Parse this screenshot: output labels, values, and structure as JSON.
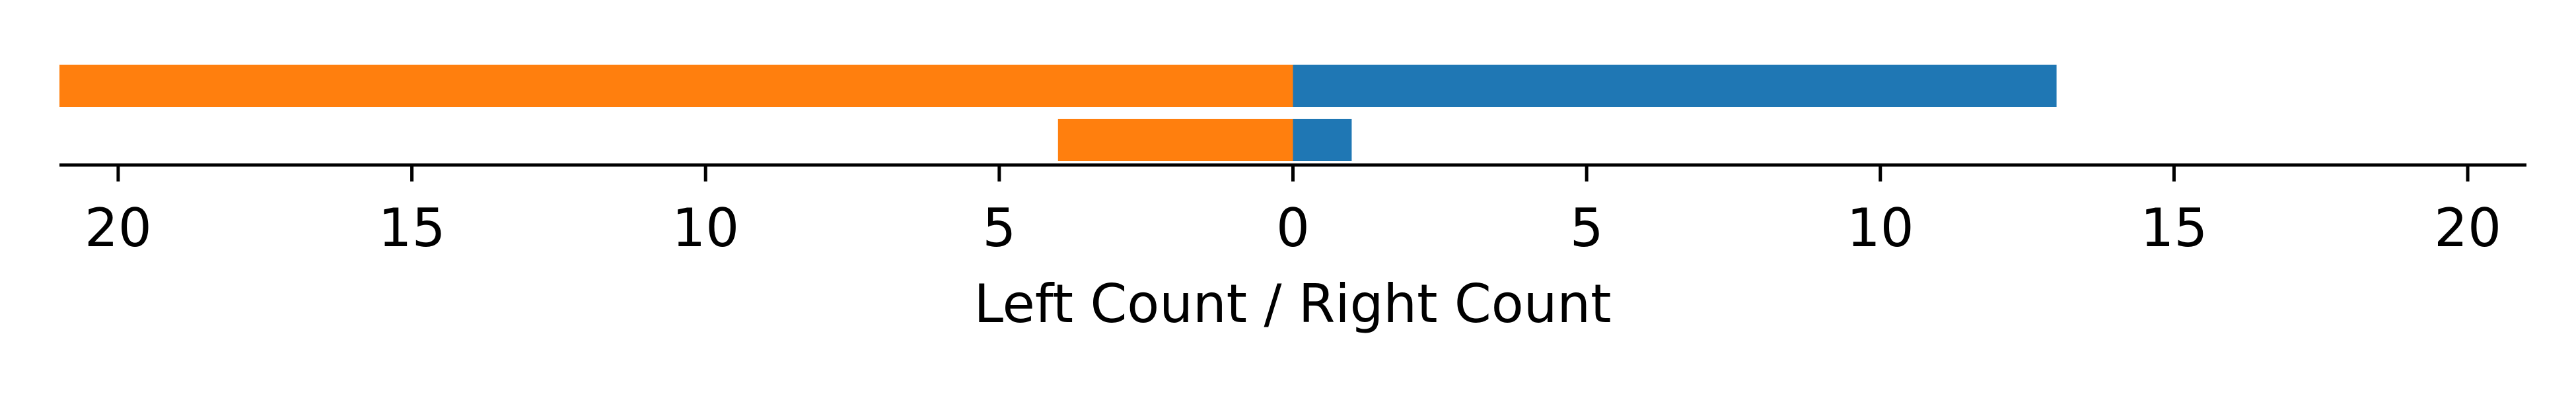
{
  "chart_data": {
    "type": "bar",
    "orientation": "horizontal-diverging",
    "xlabel": "Left Count / Right Count",
    "xlim": [
      -21,
      21
    ],
    "ticks": [
      -20,
      -15,
      -10,
      -5,
      0,
      5,
      10,
      15,
      20
    ],
    "tick_labels": [
      "20",
      "15",
      "10",
      "5",
      "0",
      "5",
      "10",
      "15",
      "20"
    ],
    "rows": [
      {
        "left": 21,
        "right": 13
      },
      {
        "left": 4,
        "right": 1
      }
    ],
    "colors": {
      "left": "#ff7f0e",
      "right": "#1f77b4"
    },
    "grid": false,
    "legend": "none"
  }
}
